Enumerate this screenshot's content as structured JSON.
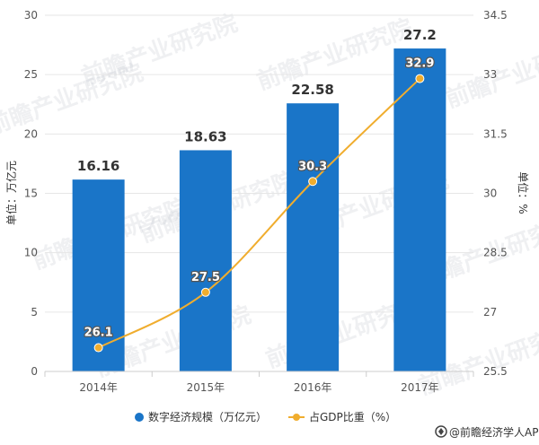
{
  "chart_data": {
    "type": "bar",
    "categories": [
      "2014年",
      "2015年",
      "2016年",
      "2017年"
    ],
    "series": [
      {
        "name": "数字经济规模（万亿元）",
        "type": "bar",
        "axis": "left",
        "values": [
          16.16,
          18.63,
          22.58,
          27.2
        ],
        "labels": [
          "16.16",
          "18.63",
          "22.58",
          "27.2"
        ]
      },
      {
        "name": "占GDP比重（%）",
        "type": "line",
        "axis": "right",
        "values": [
          26.1,
          27.5,
          30.3,
          32.9
        ],
        "labels": [
          "26.1",
          "27.5",
          "30.3",
          "32.9"
        ]
      }
    ],
    "ylabel_left": "单位：万亿元",
    "ylabel_right": "单位：%",
    "ylim_left": [
      0,
      30
    ],
    "ylim_right": [
      25.5,
      34.5
    ],
    "yticks_left": [
      "0",
      "5",
      "10",
      "15",
      "20",
      "25",
      "30"
    ],
    "yticks_right": [
      "25.5",
      "27",
      "28.5",
      "30",
      "31.5",
      "33",
      "34.5"
    ],
    "legend_position": "bottom",
    "colors": {
      "bar": "#1a75c8",
      "line": "#f0ad2e"
    }
  },
  "footer": {
    "source": "@前瞻经济学人APP"
  },
  "watermark": {
    "text": "前瞻产业研究院"
  }
}
